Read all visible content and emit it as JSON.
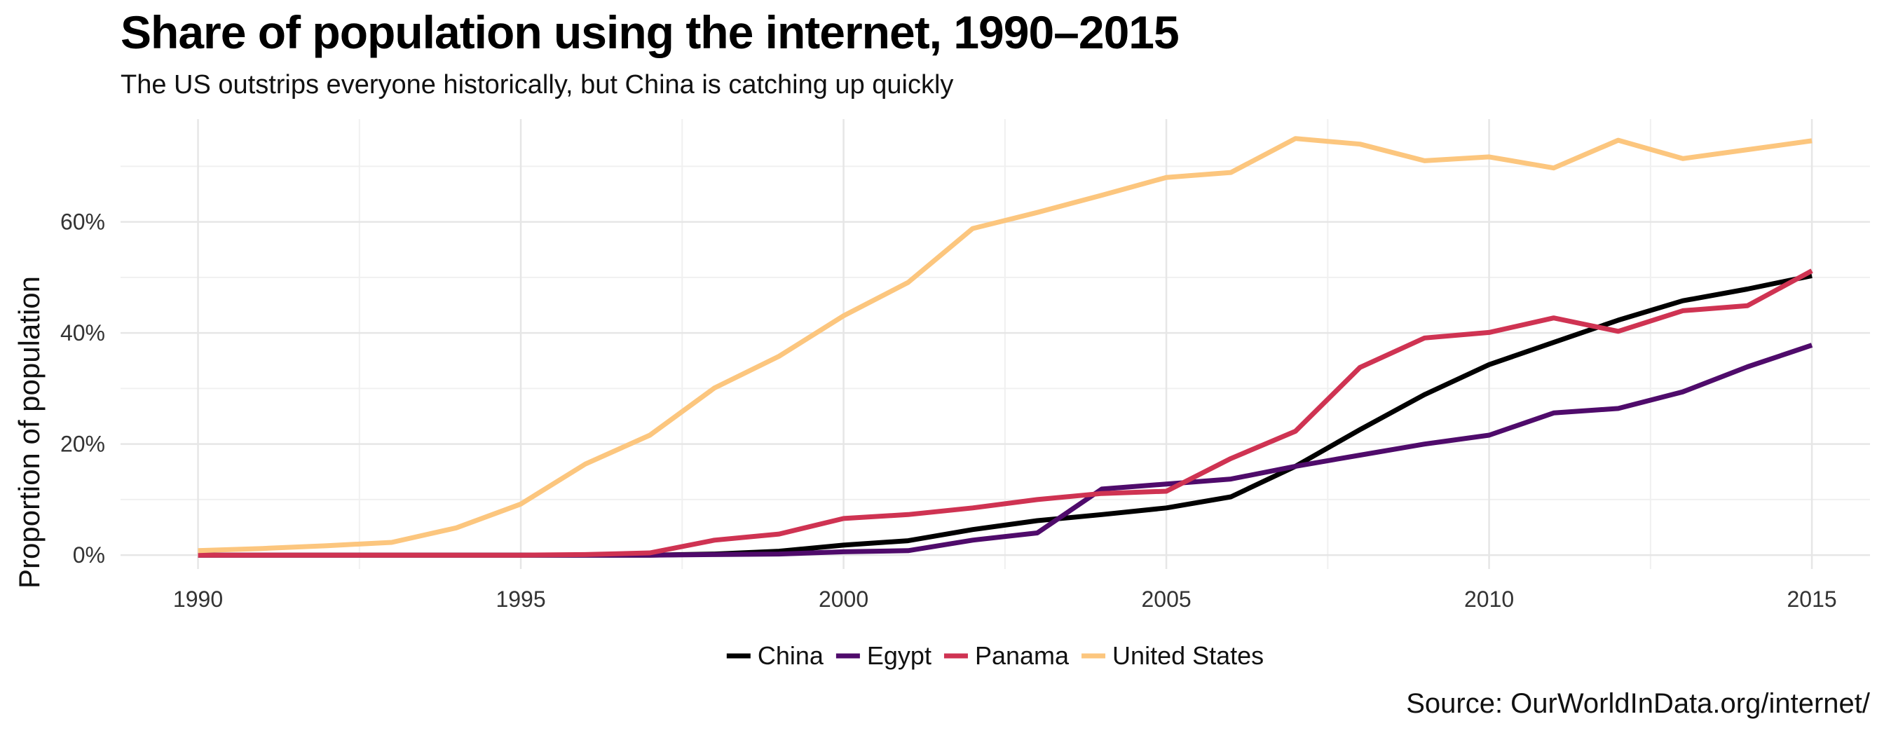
{
  "title": "Share of population using the internet, 1990–2015",
  "subtitle": "The US outstrips everyone historically, but China is catching up quickly",
  "source": "Source: OurWorldInData.org/internet/",
  "chart_data": {
    "type": "line",
    "title": "Share of population using the internet, 1990–2015",
    "subtitle": "The US outstrips everyone historically, but China is catching up quickly",
    "xlabel": "",
    "ylabel": "Proportion of population",
    "x": [
      1990,
      1991,
      1992,
      1993,
      1994,
      1995,
      1996,
      1997,
      1998,
      1999,
      2000,
      2001,
      2002,
      2003,
      2004,
      2005,
      2006,
      2007,
      2008,
      2009,
      2010,
      2011,
      2012,
      2013,
      2014,
      2015
    ],
    "xlim": [
      1988.8,
      2015.9
    ],
    "ylim": [
      -2.5,
      78.5
    ],
    "xticks": [
      1990,
      1995,
      2000,
      2005,
      2010,
      2015
    ],
    "yticks": [
      0,
      20,
      40,
      60
    ],
    "ytick_labels": [
      "0%",
      "20%",
      "40%",
      "60%"
    ],
    "grid": true,
    "legend_position": "bottom",
    "series": [
      {
        "name": "China",
        "color": "#000000",
        "values": [
          0,
          0,
          0,
          0,
          0,
          0,
          0,
          0,
          0.2,
          0.7,
          1.8,
          2.6,
          4.6,
          6.2,
          7.3,
          8.5,
          10.5,
          16.0,
          22.6,
          28.9,
          34.3,
          38.3,
          42.3,
          45.8,
          47.9,
          50.3
        ]
      },
      {
        "name": "Egypt",
        "color": "#4f0b6b",
        "values": [
          0,
          0,
          0,
          0,
          0,
          0,
          0,
          0,
          0.1,
          0.2,
          0.6,
          0.8,
          2.7,
          4.0,
          11.9,
          12.8,
          13.7,
          16.0,
          18.0,
          20.0,
          21.6,
          25.6,
          26.4,
          29.4,
          33.9,
          37.8
        ]
      },
      {
        "name": "Panama",
        "color": "#cf3352",
        "values": [
          0,
          0,
          0,
          0,
          0,
          0,
          0.1,
          0.4,
          2.7,
          3.8,
          6.6,
          7.3,
          8.5,
          10.0,
          11.1,
          11.5,
          17.4,
          22.3,
          33.8,
          39.1,
          40.1,
          42.7,
          40.3,
          44.0,
          44.9,
          51.2
        ]
      },
      {
        "name": "United States",
        "color": "#fcc67e",
        "values": [
          0.8,
          1.2,
          1.7,
          2.3,
          4.9,
          9.2,
          16.4,
          21.6,
          30.1,
          35.8,
          43.1,
          49.1,
          58.8,
          61.7,
          64.8,
          68.0,
          68.9,
          75.0,
          74.0,
          71.0,
          71.7,
          69.7,
          74.7,
          71.4,
          73.0,
          74.6
        ]
      }
    ]
  }
}
